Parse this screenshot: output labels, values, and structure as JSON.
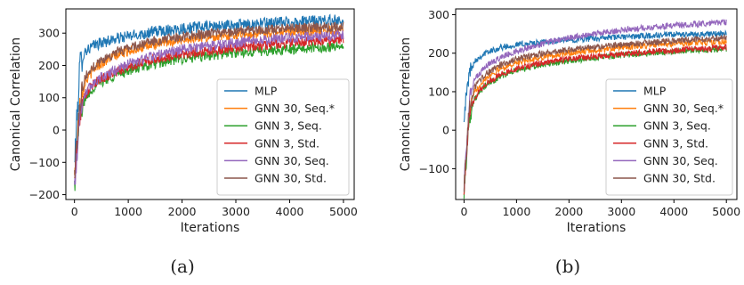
{
  "chart_data": [
    {
      "type": "line",
      "caption": "(a)",
      "xlabel": "Iterations",
      "ylabel": "Canonical Correlation",
      "xlim": [
        -160,
        5200
      ],
      "ylim": [
        -215,
        375
      ],
      "xticks": [
        0,
        1000,
        2000,
        3000,
        4000,
        5000
      ],
      "xtick_labels": [
        "0",
        "1000",
        "2000",
        "3000",
        "4000",
        "5000"
      ],
      "yticks": [
        -200,
        -100,
        0,
        100,
        200,
        300
      ],
      "ytick_labels": [
        "−200",
        "−100",
        "0",
        "100",
        "200",
        "300"
      ],
      "grid": false,
      "legend_position": "lower-right",
      "series": [
        {
          "name": "MLP",
          "color": "#1f77b4",
          "x": [
            0,
            100,
            200,
            400,
            700,
            1000,
            1500,
            2000,
            3000,
            4000,
            5000
          ],
          "values": [
            -110,
            200,
            245,
            265,
            280,
            290,
            305,
            315,
            325,
            335,
            340
          ],
          "noise": 18
        },
        {
          "name": "GNN 30, Seq.*",
          "color": "#ff7f0e",
          "x": [
            0,
            100,
            200,
            400,
            700,
            1000,
            1500,
            2000,
            3000,
            4000,
            5000
          ],
          "values": [
            -150,
            80,
            150,
            195,
            225,
            245,
            265,
            280,
            295,
            305,
            310
          ],
          "noise": 15
        },
        {
          "name": "GNN 3, Seq.",
          "color": "#2ca02c",
          "x": [
            0,
            100,
            200,
            400,
            700,
            1000,
            1500,
            2000,
            3000,
            4000,
            5000
          ],
          "values": [
            -170,
            40,
            100,
            140,
            165,
            185,
            205,
            220,
            240,
            250,
            260
          ],
          "noise": 16
        },
        {
          "name": "GNN 3, Std.",
          "color": "#d62728",
          "x": [
            0,
            100,
            200,
            400,
            700,
            1000,
            1500,
            2000,
            3000,
            4000,
            5000
          ],
          "values": [
            -160,
            50,
            110,
            150,
            175,
            195,
            220,
            235,
            255,
            270,
            280
          ],
          "noise": 16
        },
        {
          "name": "GNN 30, Seq.",
          "color": "#9467bd",
          "x": [
            0,
            100,
            200,
            400,
            700,
            1000,
            1500,
            2000,
            3000,
            4000,
            5000
          ],
          "values": [
            -185,
            55,
            115,
            155,
            180,
            205,
            230,
            250,
            270,
            285,
            295
          ],
          "noise": 16
        },
        {
          "name": "GNN 30, Std.",
          "color": "#8c564b",
          "x": [
            0,
            100,
            200,
            400,
            700,
            1000,
            1500,
            2000,
            3000,
            4000,
            5000
          ],
          "values": [
            -140,
            90,
            165,
            205,
            235,
            255,
            275,
            290,
            305,
            315,
            320
          ],
          "noise": 15
        }
      ]
    },
    {
      "type": "line",
      "caption": "(b)",
      "xlabel": "Iterations",
      "ylabel": "Canonical Correlation",
      "xlim": [
        -160,
        5200
      ],
      "ylim": [
        -180,
        315
      ],
      "xticks": [
        0,
        1000,
        2000,
        3000,
        4000,
        5000
      ],
      "xtick_labels": [
        "0",
        "1000",
        "2000",
        "3000",
        "4000",
        "5000"
      ],
      "yticks": [
        -100,
        0,
        100,
        200,
        300
      ],
      "ytick_labels": [
        "−100",
        "0",
        "100",
        "200",
        "300"
      ],
      "grid": false,
      "legend_position": "lower-right",
      "series": [
        {
          "name": "MLP",
          "color": "#1f77b4",
          "x": [
            0,
            100,
            200,
            400,
            700,
            1000,
            1500,
            2000,
            3000,
            4000,
            5000
          ],
          "values": [
            40,
            150,
            180,
            200,
            215,
            222,
            228,
            235,
            242,
            248,
            250
          ],
          "noise": 8
        },
        {
          "name": "GNN 30, Seq.*",
          "color": "#ff7f0e",
          "x": [
            0,
            100,
            200,
            400,
            700,
            1000,
            1500,
            2000,
            3000,
            4000,
            5000
          ],
          "values": [
            -150,
            50,
            100,
            135,
            160,
            175,
            190,
            200,
            215,
            225,
            230
          ],
          "noise": 8
        },
        {
          "name": "GNN 3, Seq.",
          "color": "#2ca02c",
          "x": [
            0,
            100,
            200,
            400,
            700,
            1000,
            1500,
            2000,
            3000,
            4000,
            5000
          ],
          "values": [
            -160,
            30,
            80,
            115,
            140,
            155,
            170,
            180,
            195,
            205,
            210
          ],
          "noise": 8
        },
        {
          "name": "GNN 3, Std.",
          "color": "#d62728",
          "x": [
            0,
            100,
            200,
            400,
            700,
            1000,
            1500,
            2000,
            3000,
            4000,
            5000
          ],
          "values": [
            -150,
            35,
            85,
            120,
            145,
            160,
            175,
            185,
            198,
            208,
            215
          ],
          "noise": 8
        },
        {
          "name": "GNN 30, Seq.",
          "color": "#9467bd",
          "x": [
            0,
            100,
            200,
            400,
            700,
            1000,
            1500,
            2000,
            3000,
            4000,
            5000
          ],
          "values": [
            -140,
            80,
            130,
            165,
            190,
            205,
            225,
            240,
            260,
            272,
            280
          ],
          "noise": 8
        },
        {
          "name": "GNN 30, Std.",
          "color": "#8c564b",
          "x": [
            0,
            100,
            200,
            400,
            700,
            1000,
            1500,
            2000,
            3000,
            4000,
            5000
          ],
          "values": [
            -145,
            60,
            110,
            145,
            170,
            185,
            200,
            210,
            222,
            232,
            240
          ],
          "noise": 8
        }
      ]
    }
  ]
}
